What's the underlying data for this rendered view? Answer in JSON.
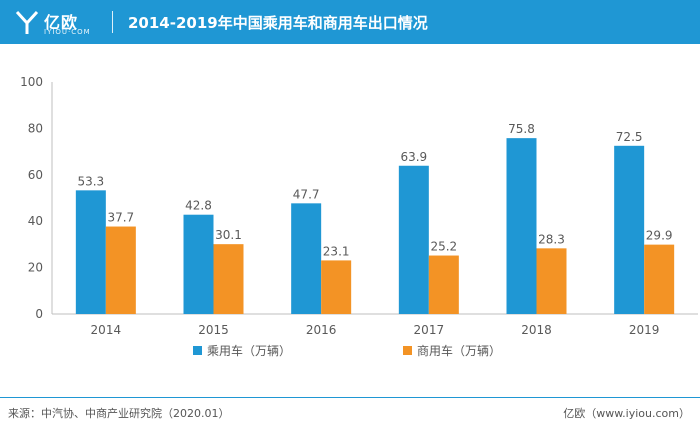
{
  "header": {
    "logo_text": "亿欧",
    "logo_sub": "IYIOU·COM",
    "title": "2014-2019年中国乘用车和商用车出口情况"
  },
  "colors": {
    "header_bg": "#1f97d4",
    "series_passenger": "#1f97d4",
    "series_commercial": "#f39325"
  },
  "chart_data": {
    "type": "bar",
    "categories": [
      "2014",
      "2015",
      "2016",
      "2017",
      "2018",
      "2019"
    ],
    "series": [
      {
        "name": "乘用车（万辆）",
        "values": [
          53.3,
          42.8,
          47.7,
          63.9,
          75.8,
          72.5
        ]
      },
      {
        "name": "商用车（万辆）",
        "values": [
          37.7,
          30.1,
          23.1,
          25.2,
          28.3,
          29.9
        ]
      }
    ],
    "ylim": [
      0,
      100
    ],
    "yticks": [
      0,
      20,
      40,
      60,
      80,
      100
    ],
    "legend_position": "bottom",
    "grid": false
  },
  "footer": {
    "source": "来源：中汽协、中商产业研究院（2020.01）",
    "brand": "亿欧（www.iyiou.com）"
  }
}
